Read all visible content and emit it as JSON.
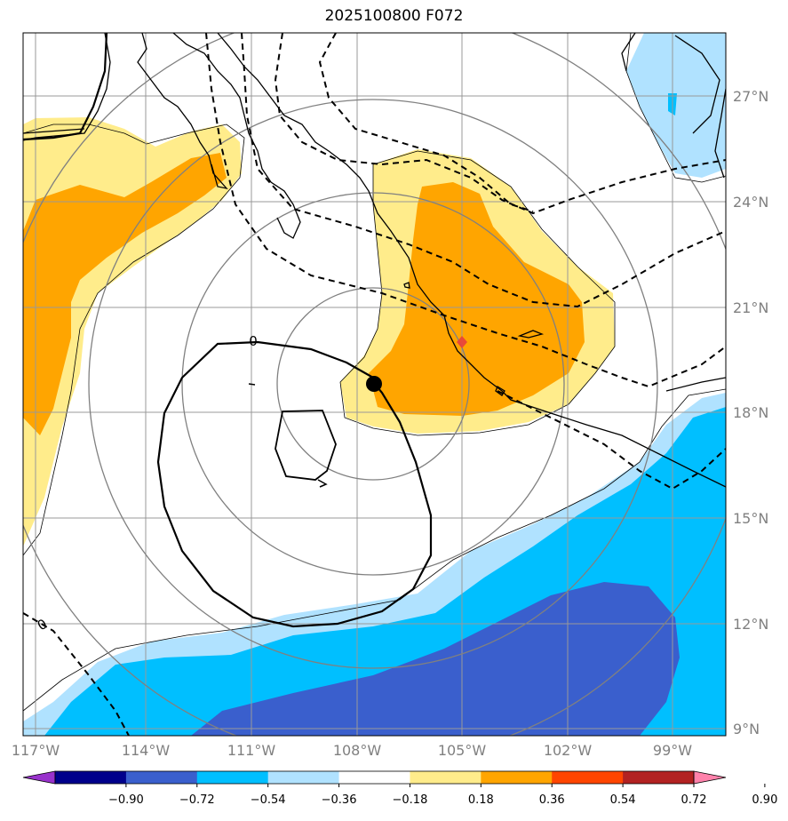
{
  "title": "2025100800 F072",
  "lon_ticks": [
    "117°W",
    "114°W",
    "111°W",
    "108°W",
    "105°W",
    "102°W",
    "99°W"
  ],
  "lat_ticks": [
    "27°N",
    "24°N",
    "21°N",
    "18°N",
    "15°N",
    "12°N",
    "9°N"
  ],
  "contour_label": "0",
  "colorbar": {
    "ticks": [
      "−0.90",
      "−0.72",
      "−0.54",
      "−0.36",
      "−0.18",
      "0.18",
      "0.36",
      "0.54",
      "0.72",
      "0.90"
    ],
    "colors": [
      "#9932cc",
      "#00008b",
      "#3a5fcd",
      "#00bfff",
      "#b0e2ff",
      "#ffffff",
      "#ffec8b",
      "#ffa500",
      "#ff4500",
      "#b22222",
      "#ff82ab"
    ]
  },
  "map_colors": {
    "pos1": "#ffec8b",
    "pos2": "#ffa500",
    "neg1": "#b0e2ff",
    "neg2": "#00bfff",
    "neg3": "#3a5fcd",
    "grid": "#999999",
    "marker": "#000000",
    "diamond": "#e9403a"
  }
}
